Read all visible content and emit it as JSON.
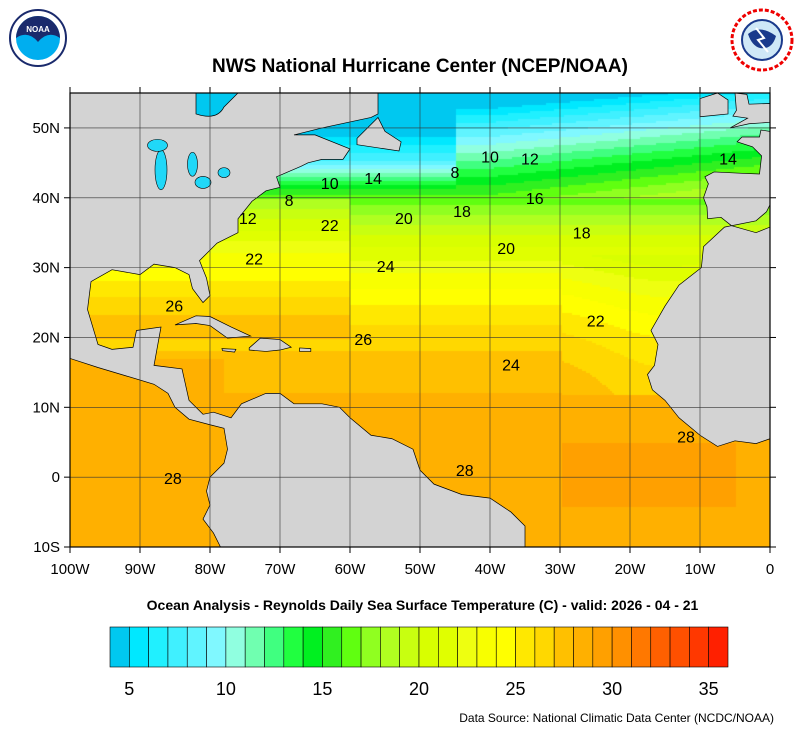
{
  "title": "NWS National Hurricane Center (NCEP/NOAA)",
  "logos": {
    "left": "NOAA",
    "right": "NATIONAL WEATHER SERVICE"
  },
  "subtitle": "Ocean Analysis - Reynolds Daily Sea Surface Temperature (C) - valid: 2026 - 04 - 21",
  "source": "Data Source: National Climatic Data Center (NCDC/NOAA)",
  "map": {
    "lon_range": [
      -100,
      0
    ],
    "lat_range": [
      -10,
      55
    ],
    "lon_ticks": [
      {
        "v": -100,
        "label": "100W"
      },
      {
        "v": -90,
        "label": "90W"
      },
      {
        "v": -80,
        "label": "80W"
      },
      {
        "v": -70,
        "label": "70W"
      },
      {
        "v": -60,
        "label": "60W"
      },
      {
        "v": -50,
        "label": "50W"
      },
      {
        "v": -40,
        "label": "40W"
      },
      {
        "v": -30,
        "label": "30W"
      },
      {
        "v": -20,
        "label": "20W"
      },
      {
        "v": -10,
        "label": "10W"
      },
      {
        "v": 0,
        "label": "0"
      }
    ],
    "lat_ticks": [
      {
        "v": 50,
        "label": "50N"
      },
      {
        "v": 40,
        "label": "40N"
      },
      {
        "v": 30,
        "label": "30N"
      },
      {
        "v": 20,
        "label": "20N"
      },
      {
        "v": 10,
        "label": "10N"
      },
      {
        "v": 0,
        "label": "0"
      },
      {
        "v": -10,
        "label": "10S"
      }
    ],
    "land_color": "#d3d3d3",
    "grid": true,
    "contour_labels": [
      {
        "t": "10",
        "lon": -40,
        "lat": 45.9
      },
      {
        "t": "12",
        "lon": -34.3,
        "lat": 45.6
      },
      {
        "t": "14",
        "lon": -6,
        "lat": 45.6
      },
      {
        "t": "8",
        "lon": -45,
        "lat": 43.7
      },
      {
        "t": "10",
        "lon": -62.9,
        "lat": 42.1
      },
      {
        "t": "14",
        "lon": -56.7,
        "lat": 42.8
      },
      {
        "t": "8",
        "lon": -68.7,
        "lat": 39.7
      },
      {
        "t": "12",
        "lon": -74.6,
        "lat": 37.1
      },
      {
        "t": "22",
        "lon": -62.9,
        "lat": 36.1
      },
      {
        "t": "20",
        "lon": -52.3,
        "lat": 37.1
      },
      {
        "t": "18",
        "lon": -44,
        "lat": 38.1
      },
      {
        "t": "16",
        "lon": -33.6,
        "lat": 40
      },
      {
        "t": "18",
        "lon": -26.9,
        "lat": 35
      },
      {
        "t": "20",
        "lon": -37.7,
        "lat": 32.8
      },
      {
        "t": "22",
        "lon": -73.7,
        "lat": 31.3
      },
      {
        "t": "24",
        "lon": -54.9,
        "lat": 30.2
      },
      {
        "t": "26",
        "lon": -85.1,
        "lat": 24.6
      },
      {
        "t": "22",
        "lon": -24.9,
        "lat": 22.4
      },
      {
        "t": "26",
        "lon": -58.1,
        "lat": 19.8
      },
      {
        "t": "24",
        "lon": -37,
        "lat": 16.1
      },
      {
        "t": "28",
        "lon": -12,
        "lat": 5.8
      },
      {
        "t": "28",
        "lon": -43.6,
        "lat": 1
      },
      {
        "t": "28",
        "lon": -85.3,
        "lat": -0.1
      }
    ]
  },
  "colorbar": {
    "min": 4,
    "max": 36,
    "colors": [
      "#00c8f0",
      "#00e8ff",
      "#20f0ff",
      "#40f0ff",
      "#60f4ff",
      "#80f8ff",
      "#90ffe0",
      "#70ffb0",
      "#40ff80",
      "#20ff40",
      "#00f020",
      "#30f020",
      "#60ff10",
      "#90ff20",
      "#b0ff20",
      "#c8ff10",
      "#d8ff00",
      "#e0ff00",
      "#eeff10",
      "#f8ff00",
      "#ffff00",
      "#ffe800",
      "#ffd800",
      "#ffc000",
      "#ffb000",
      "#ffa000",
      "#ff9000",
      "#ff7800",
      "#ff6000",
      "#ff5000",
      "#ff3800",
      "#ff2000"
    ],
    "labels": [
      {
        "v": 5,
        "t": "5"
      },
      {
        "v": 10,
        "t": "10"
      },
      {
        "v": 15,
        "t": "15"
      },
      {
        "v": 20,
        "t": "20"
      },
      {
        "v": 25,
        "t": "25"
      },
      {
        "v": 30,
        "t": "30"
      },
      {
        "v": 35,
        "t": "35"
      }
    ]
  }
}
